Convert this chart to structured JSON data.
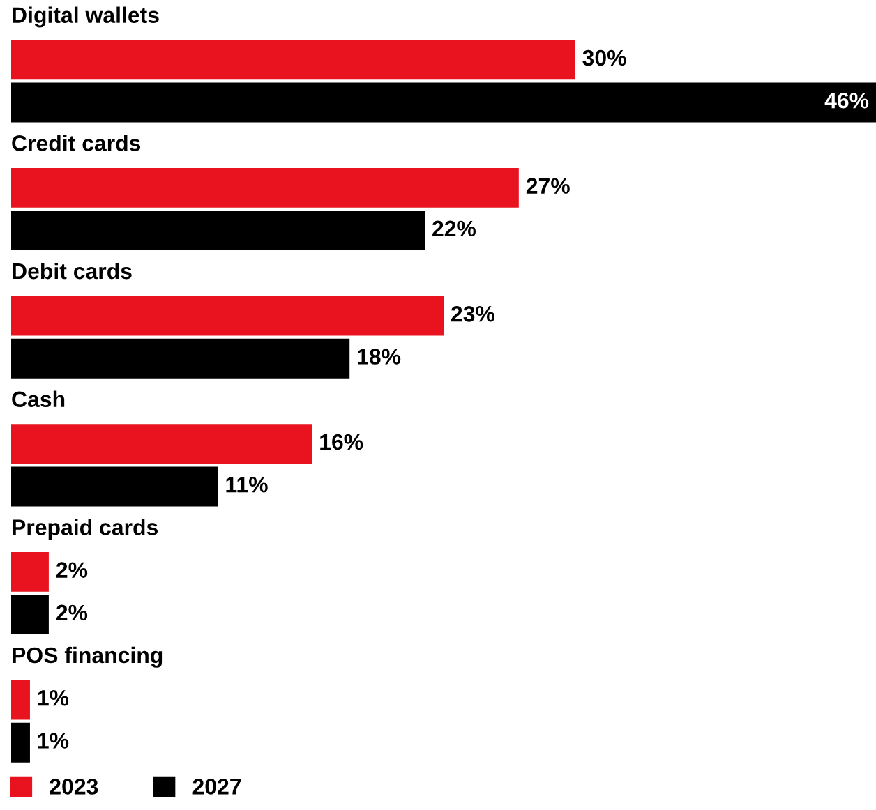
{
  "chart_data": {
    "type": "bar",
    "orientation": "horizontal",
    "categories": [
      "Digital wallets",
      "Credit cards",
      "Debit cards",
      "Cash",
      "Prepaid cards",
      "POS financing"
    ],
    "series": [
      {
        "name": "2023",
        "color": "#e8131f",
        "values": [
          30,
          27,
          23,
          16,
          2,
          1
        ],
        "value_labels": [
          "30%",
          "27%",
          "23%",
          "16%",
          "2%",
          "1%"
        ]
      },
      {
        "name": "2027",
        "color": "#000000",
        "values": [
          46,
          22,
          18,
          11,
          2,
          1
        ],
        "value_labels": [
          "46%",
          "22%",
          "18%",
          "11%",
          "2%",
          "1%"
        ]
      }
    ],
    "legend": "bottom left"
  }
}
